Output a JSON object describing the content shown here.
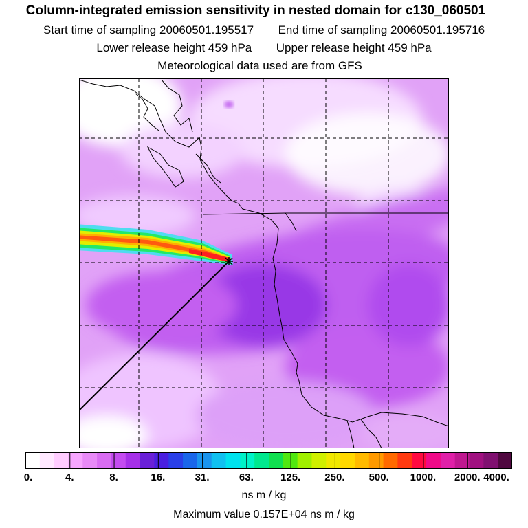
{
  "header": {
    "title": "Column-integrated emission sensitivity in nested domain for c130_060501",
    "start_label": "Start time of sampling",
    "start_value": "20060501.195517",
    "end_label": "End time of sampling",
    "end_value": "20060501.195716",
    "lower_label": "Lower release height",
    "lower_value": "459 hPa",
    "upper_label": "Upper release height",
    "upper_value": "459 hPa",
    "met_source": "Meteorological data used are from GFS"
  },
  "colorbar": {
    "ticks": [
      "0.",
      "4.",
      "8.",
      "16.",
      "31.",
      "63.",
      "125.",
      "250.",
      "500.",
      "1000.",
      "2000.",
      "4000."
    ],
    "colors": [
      "#ffffff",
      "#ffe8ff",
      "#ffccff",
      "#f7a6ff",
      "#e88af7",
      "#d96cf2",
      "#c44cf0",
      "#a630e8",
      "#6a20d8",
      "#4a1fe0",
      "#2a3fe8",
      "#1a66ea",
      "#1a94ee",
      "#10c0f0",
      "#00e2ee",
      "#00f2c8",
      "#00e88e",
      "#10e050",
      "#50e810",
      "#a0f000",
      "#d0f000",
      "#f0e800",
      "#ffd800",
      "#ffba00",
      "#ff9a00",
      "#ff6a00",
      "#ff3a10",
      "#ff0a40",
      "#f00a88",
      "#e020a8",
      "#c01890",
      "#a01080",
      "#801070",
      "#500840"
    ],
    "units": "ns m / kg",
    "max_label": "Maximum value",
    "max_value": "0.157E+04 ns m / kg"
  },
  "map": {
    "gridlines": "dashed",
    "release_point": "c130_060501"
  },
  "colors": {
    "plume_core": "#ff2a10",
    "plume_edge": "#e8e800",
    "background_sensitivity": "#d98af2",
    "high_sensitivity": "#8e2ee0"
  }
}
